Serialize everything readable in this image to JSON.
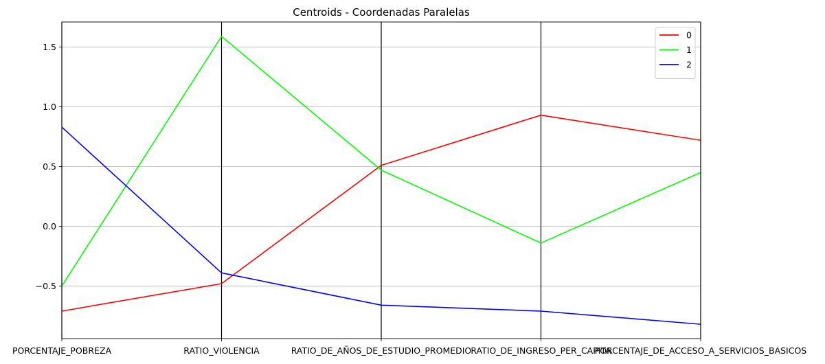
{
  "chart_data": {
    "type": "line",
    "title": "Centroids - Coordenadas Paralelas",
    "categories": [
      "PORCENTAJE_POBREZA",
      "RATIO_VIOLENCIA",
      "RATIO_DE_AÑOS_DE_ESTUDIO_PROMEDIO",
      "RATIO_DE_INGRESO_PER_CAPITA",
      "PORCENTAJE_DE_ACCESO_A_SERVICIOS_BASICOS"
    ],
    "ylim": [
      -0.94,
      1.71
    ],
    "yticks": [
      -0.5,
      0.0,
      0.5,
      1.0,
      1.5
    ],
    "ytick_labels": [
      "−0.5",
      "0.0",
      "0.5",
      "1.0",
      "1.5"
    ],
    "grid": "horizontal",
    "vertical_axes": true,
    "legend": {
      "position": "top-right"
    },
    "series": [
      {
        "name": "0",
        "color": "#ff0000",
        "values": [
          -0.71,
          -0.48,
          0.51,
          0.93,
          0.72
        ]
      },
      {
        "name": "1",
        "color": "#00ff00",
        "values": [
          -0.5,
          1.59,
          0.47,
          -0.14,
          0.45
        ]
      },
      {
        "name": "2",
        "color": "#0000ff",
        "values": [
          0.83,
          -0.39,
          -0.66,
          -0.71,
          -0.82
        ]
      }
    ]
  }
}
